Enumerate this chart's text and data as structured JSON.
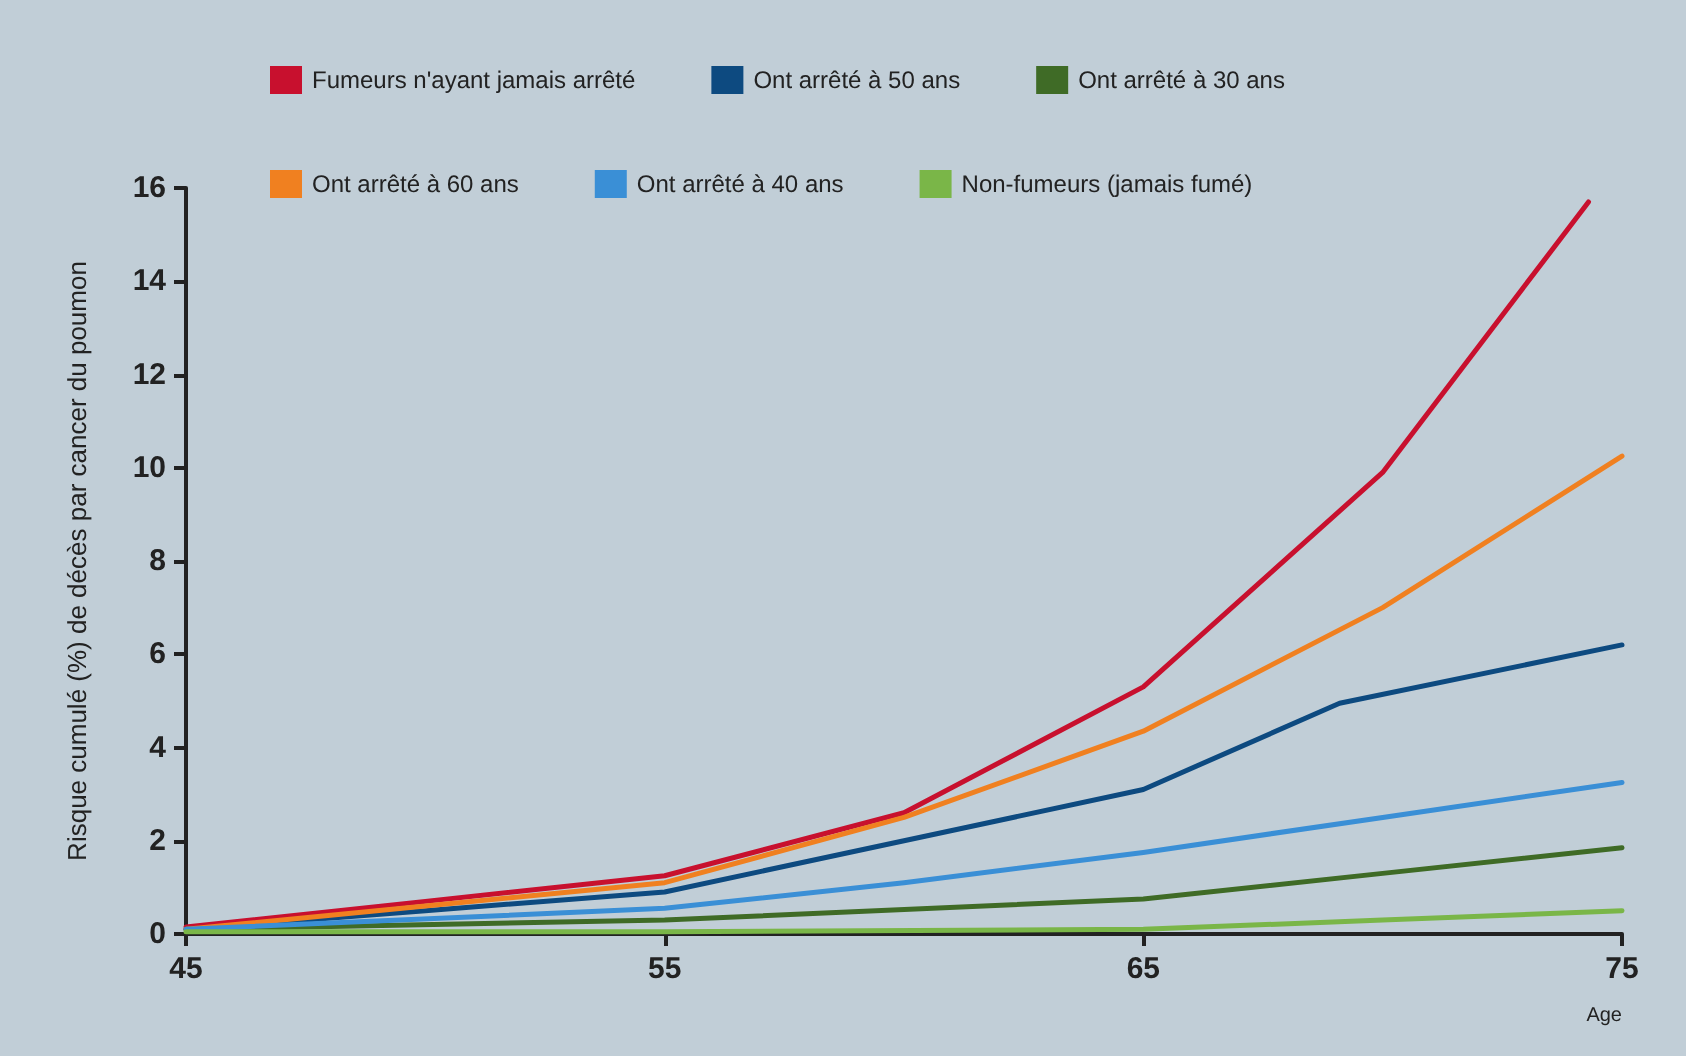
{
  "chart_data": {
    "type": "line",
    "xlabel": "Age",
    "ylabel": "Risque cumulé (%) de décès par cancer du poumon",
    "xlim": [
      45,
      75
    ],
    "xticks": [
      45,
      55,
      65,
      75
    ],
    "ylim": [
      0,
      16
    ],
    "yticks": [
      0,
      2,
      4,
      6,
      8,
      10,
      12,
      14,
      16
    ],
    "grid": false,
    "legend": "top",
    "marker": "none",
    "line_style": "solid",
    "series": [
      {
        "name": "Fumeurs n'ayant jamais arrêté",
        "color": "#c8102e",
        "x": [
          45,
          50,
          55,
          60,
          65,
          70,
          74.3
        ],
        "values": [
          0.15,
          0.7,
          1.25,
          2.6,
          5.3,
          9.9,
          15.7
        ]
      },
      {
        "name": "Ont arrêté à 50 ans",
        "color": "#0d4a80",
        "x": [
          45,
          50,
          55,
          60,
          65,
          69.1,
          75
        ],
        "values": [
          0.1,
          0.5,
          0.9,
          2.0,
          3.1,
          4.95,
          6.2
        ]
      },
      {
        "name": "Ont arrêté à 30 ans",
        "color": "#3f6b26",
        "x": [
          45,
          55,
          65,
          70,
          75
        ],
        "values": [
          0.1,
          0.3,
          0.75,
          1.3,
          1.85
        ]
      },
      {
        "name": "Ont arrêté à 60 ans",
        "color": "#f08020",
        "x": [
          45,
          50,
          55,
          60,
          65,
          70,
          75
        ],
        "values": [
          0.1,
          0.6,
          1.1,
          2.5,
          4.35,
          7.0,
          10.25
        ]
      },
      {
        "name": "Ont arrêté à 40 ans",
        "color": "#3a8fd6",
        "x": [
          45,
          55,
          60,
          65,
          70,
          75
        ],
        "values": [
          0.1,
          0.55,
          1.1,
          1.75,
          2.5,
          3.25
        ]
      },
      {
        "name": "Non-fumeurs (jamais fumé)",
        "color": "#7ab648",
        "x": [
          45,
          55,
          65,
          70,
          75
        ],
        "values": [
          0.05,
          0.05,
          0.1,
          0.3,
          0.5
        ]
      }
    ]
  }
}
